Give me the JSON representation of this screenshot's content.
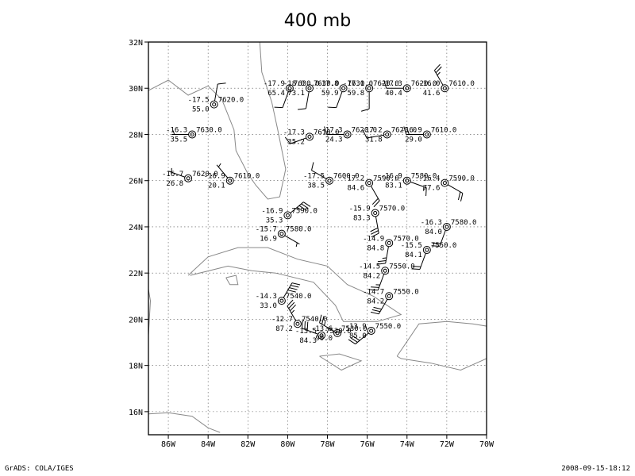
{
  "title": "400 mb",
  "footer": {
    "left": "GrADS: COLA/IGES",
    "right": "2008-09-15-18:12"
  },
  "axes": {
    "x_ticks": [
      {
        "lon": -86,
        "label": "86W"
      },
      {
        "lon": -84,
        "label": "84W"
      },
      {
        "lon": -82,
        "label": "82W"
      },
      {
        "lon": -80,
        "label": "80W"
      },
      {
        "lon": -78,
        "label": "78W"
      },
      {
        "lon": -76,
        "label": "76W"
      },
      {
        "lon": -74,
        "label": "74W"
      },
      {
        "lon": -72,
        "label": "72W"
      },
      {
        "lon": -70,
        "label": "70W"
      }
    ],
    "y_ticks": [
      {
        "lat": 16,
        "label": "16N"
      },
      {
        "lat": 18,
        "label": "18N"
      },
      {
        "lat": 20,
        "label": "20N"
      },
      {
        "lat": 22,
        "label": "22N"
      },
      {
        "lat": 24,
        "label": "24N"
      },
      {
        "lat": 26,
        "label": "26N"
      },
      {
        "lat": 28,
        "label": "28N"
      },
      {
        "lat": 30,
        "label": "30N"
      },
      {
        "lat": 32,
        "label": "32N"
      }
    ],
    "lon_range": [
      -87,
      -70
    ],
    "lat_range": [
      15,
      32
    ],
    "grid": "dotted"
  },
  "coastlines": [
    {
      "name": "gulf-coast",
      "points": [
        [
          -87,
          29.9
        ],
        [
          -86,
          30.35
        ],
        [
          -85,
          29.7
        ],
        [
          -84,
          30.1
        ],
        [
          -83.3,
          29.5
        ],
        [
          -82.7,
          28.2
        ],
        [
          -82.6,
          27.3
        ],
        [
          -82,
          26.3
        ],
        [
          -81.6,
          25.8
        ],
        [
          -81,
          25.2
        ],
        [
          -80.4,
          25.3
        ],
        [
          -80.1,
          26.5
        ],
        [
          -80.5,
          28.2
        ],
        [
          -80.8,
          29.4
        ],
        [
          -81.3,
          30.7
        ],
        [
          -81.4,
          32
        ]
      ]
    },
    {
      "name": "cuba",
      "points": [
        [
          -85,
          21.9
        ],
        [
          -84,
          22.7
        ],
        [
          -82.5,
          23.1
        ],
        [
          -81,
          23.1
        ],
        [
          -79.5,
          22.6
        ],
        [
          -78,
          22.3
        ],
        [
          -77,
          21.5
        ],
        [
          -75.7,
          21
        ],
        [
          -74.3,
          20.2
        ],
        [
          -75.5,
          19.9
        ],
        [
          -77.2,
          19.9
        ],
        [
          -77.6,
          20.6
        ],
        [
          -78.7,
          21.6
        ],
        [
          -80.6,
          22
        ],
        [
          -81.8,
          22.1
        ],
        [
          -83,
          22.3
        ],
        [
          -84.9,
          21.9
        ]
      ]
    },
    {
      "name": "isle-of-youth",
      "points": [
        [
          -83.1,
          21.8
        ],
        [
          -82.6,
          21.9
        ],
        [
          -82.5,
          21.5
        ],
        [
          -82.9,
          21.5
        ],
        [
          -83.1,
          21.8
        ]
      ]
    },
    {
      "name": "jamaica",
      "points": [
        [
          -78.4,
          18.4
        ],
        [
          -77.4,
          18.5
        ],
        [
          -76.3,
          18.2
        ],
        [
          -77.3,
          17.8
        ],
        [
          -78.4,
          18.4
        ]
      ]
    },
    {
      "name": "hispaniola",
      "points": [
        [
          -74.5,
          18.4
        ],
        [
          -73.4,
          19.8
        ],
        [
          -72,
          19.9
        ],
        [
          -70.7,
          19.8
        ],
        [
          -70,
          19.7
        ],
        [
          -70,
          18.3
        ],
        [
          -71.3,
          17.8
        ],
        [
          -72.8,
          18.1
        ],
        [
          -74.3,
          18.3
        ],
        [
          -74.5,
          18.4
        ]
      ]
    },
    {
      "name": "yucatan",
      "points": [
        [
          -87,
          21.3
        ],
        [
          -86.9,
          20.8
        ],
        [
          -87,
          19.3
        ],
        [
          -87,
          16
        ]
      ]
    },
    {
      "name": "honduras",
      "points": [
        [
          -87,
          15.9
        ],
        [
          -86,
          15.95
        ],
        [
          -84.8,
          15.8
        ],
        [
          -84,
          15.3
        ],
        [
          -83.4,
          15.1
        ]
      ]
    }
  ],
  "stations": [
    {
      "lon": -79.9,
      "lat": 30.0,
      "t": "-17.9",
      "rh": "65.4",
      "z": "7630.0",
      "wdir": 200,
      "wspd": 10
    },
    {
      "lon": -78.9,
      "lat": 30.0,
      "t": "-18.0",
      "rh": "73.1",
      "z": "7630.0",
      "wdir": 190,
      "wspd": 10
    },
    {
      "lon": -77.2,
      "lat": 30.0,
      "t": "-17.8",
      "rh": "59.9",
      "z": "7630.0",
      "wdir": 200,
      "wspd": 10
    },
    {
      "lon": -75.9,
      "lat": 30.0,
      "t": "-17.1",
      "rh": "59.8",
      "z": "7620.0",
      "wdir": 180,
      "wspd": 10
    },
    {
      "lon": -74.0,
      "lat": 30.0,
      "t": "-17.3",
      "rh": "40.4",
      "z": "7620.0",
      "wdir": 270,
      "wspd": 10
    },
    {
      "lon": -72.1,
      "lat": 30.0,
      "t": "-16.0",
      "rh": "41.6",
      "z": "7610.0",
      "wdir": 330,
      "wspd": 25
    },
    {
      "lon": -83.7,
      "lat": 29.3,
      "t": "-17.5",
      "rh": "55.0",
      "z": "7620.0",
      "wdir": 10,
      "wspd": 10
    },
    {
      "lon": -84.8,
      "lat": 28.0,
      "t": "-16.3",
      "rh": "35.5",
      "z": "7630.0",
      "wdir": 270,
      "wspd": 5
    },
    {
      "lon": -78.9,
      "lat": 27.9,
      "t": "-17.3",
      "rh": "35.2",
      "z": "7610.0",
      "wdir": 250,
      "wspd": 10
    },
    {
      "lon": -77.0,
      "lat": 28.0,
      "t": "-17.3",
      "rh": "24.3",
      "z": "7620.0",
      "wdir": 270,
      "wspd": 10
    },
    {
      "lon": -75.0,
      "lat": 28.0,
      "t": "-17.2",
      "rh": "31.8",
      "z": "7620.0",
      "wdir": 260,
      "wspd": 10
    },
    {
      "lon": -73.0,
      "lat": 28.0,
      "t": "-16.9",
      "rh": "29.0",
      "z": "7610.0",
      "wdir": 270,
      "wspd": 15
    },
    {
      "lon": -85.0,
      "lat": 26.1,
      "t": "-16.7",
      "rh": "26.8",
      "z": "7620.0",
      "wdir": 290,
      "wspd": 5
    },
    {
      "lon": -82.9,
      "lat": 26.0,
      "t": "-16.9",
      "rh": "20.1",
      "z": "7610.0",
      "wdir": 320,
      "wspd": 5
    },
    {
      "lon": -77.9,
      "lat": 26.0,
      "t": "-17.5",
      "rh": "38.5",
      "z": "7600.0",
      "wdir": 300,
      "wspd": 10
    },
    {
      "lon": -75.9,
      "lat": 25.9,
      "t": "-17.2",
      "rh": "84.6",
      "z": "7590.0",
      "wdir": 150,
      "wspd": 20
    },
    {
      "lon": -74.0,
      "lat": 26.0,
      "t": "-16.9",
      "rh": "83.1",
      "z": "7580.0",
      "wdir": 110,
      "wspd": 15
    },
    {
      "lon": -72.1,
      "lat": 25.9,
      "t": "-16.4",
      "rh": "77.6",
      "z": "7590.0",
      "wdir": 120,
      "wspd": 20
    },
    {
      "lon": -80.0,
      "lat": 24.5,
      "t": "-16.9",
      "rh": "35.3",
      "z": "7590.0",
      "wdir": 50,
      "wspd": 35
    },
    {
      "lon": -80.3,
      "lat": 23.7,
      "t": "-15.7",
      "rh": "16.9",
      "z": "7580.0",
      "wdir": 120,
      "wspd": 5
    },
    {
      "lon": -75.6,
      "lat": 24.6,
      "t": "-15.9",
      "rh": "83.3",
      "z": "7570.0",
      "wdir": 170,
      "wspd": 30
    },
    {
      "lon": -72.0,
      "lat": 24.0,
      "t": "-16.3",
      "rh": "84.0",
      "z": "7580.0",
      "wdir": 200,
      "wspd": 20
    },
    {
      "lon": -74.9,
      "lat": 23.3,
      "t": "-14.9",
      "rh": "84.8",
      "z": "7570.0",
      "wdir": 190,
      "wspd": 25
    },
    {
      "lon": -73.0,
      "lat": 23.0,
      "t": "-15.5",
      "rh": "84.1",
      "z": "7550.0",
      "wdir": 200,
      "wspd": 20
    },
    {
      "lon": -75.1,
      "lat": 22.1,
      "t": "-14.5",
      "rh": "84.2",
      "z": "7550.0",
      "wdir": 200,
      "wspd": 25
    },
    {
      "lon": -74.9,
      "lat": 21.0,
      "t": "-14.7",
      "rh": "84.2",
      "z": "7550.0",
      "wdir": 210,
      "wspd": 30
    },
    {
      "lon": -80.3,
      "lat": 20.8,
      "t": "-14.3",
      "rh": "33.0",
      "z": "7540.0",
      "wdir": 30,
      "wspd": 40
    },
    {
      "lon": -79.5,
      "lat": 19.8,
      "t": "-12.7",
      "rh": "87.2",
      "z": "7540.0",
      "wdir": 330,
      "wspd": 35
    },
    {
      "lon": -78.3,
      "lat": 19.3,
      "t": "-13.5",
      "rh": "84.3",
      "z": "7520.0",
      "wdir": 290,
      "wspd": 30
    },
    {
      "lon": -77.5,
      "lat": 19.4,
      "t": "-13.6",
      "rh": "90.0",
      "z": "7530.0",
      "wdir": 300,
      "wspd": 25
    },
    {
      "lon": -75.8,
      "lat": 19.5,
      "t": "-13.9",
      "rh": "85.0",
      "z": "7550.0",
      "wdir": 230,
      "wspd": 30
    }
  ]
}
